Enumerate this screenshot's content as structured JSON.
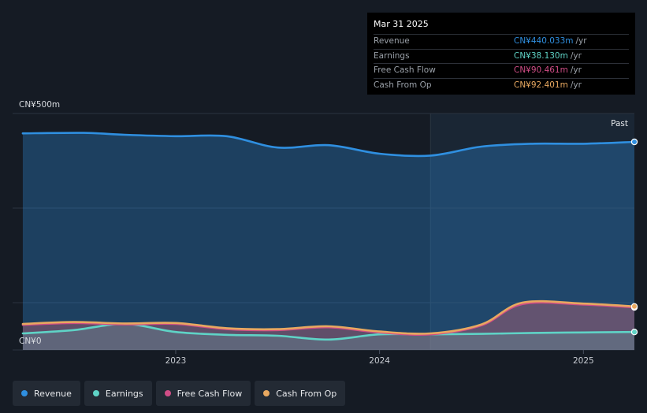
{
  "chart_data": {
    "type": "area",
    "y_top_label": "CN¥500m",
    "y_zero_label": "CN¥0",
    "past_label": "Past",
    "ylim": [
      0,
      500
    ],
    "xlim": [
      2022.2,
      2025.25
    ],
    "x_ticks": [
      {
        "value": 2023,
        "label": "2023"
      },
      {
        "value": 2024,
        "label": "2024"
      },
      {
        "value": 2025,
        "label": "2025"
      }
    ],
    "past_start": 2024.25,
    "series": [
      {
        "name": "Revenue",
        "color": "#2f8fe0",
        "points": [
          [
            2022.25,
            458
          ],
          [
            2022.55,
            459
          ],
          [
            2022.75,
            455
          ],
          [
            2023.0,
            452
          ],
          [
            2023.25,
            452
          ],
          [
            2023.5,
            428
          ],
          [
            2023.75,
            433
          ],
          [
            2024.0,
            415
          ],
          [
            2024.25,
            411
          ],
          [
            2024.5,
            430
          ],
          [
            2024.75,
            436
          ],
          [
            2025.0,
            436
          ],
          [
            2025.25,
            440
          ]
        ]
      },
      {
        "name": "Earnings",
        "color": "#5fd3c6",
        "points": [
          [
            2022.25,
            35
          ],
          [
            2022.5,
            42
          ],
          [
            2022.75,
            55
          ],
          [
            2023.0,
            38
          ],
          [
            2023.25,
            32
          ],
          [
            2023.5,
            30
          ],
          [
            2023.75,
            22
          ],
          [
            2024.0,
            33
          ],
          [
            2024.25,
            33
          ],
          [
            2024.5,
            34
          ],
          [
            2024.75,
            36
          ],
          [
            2025.0,
            37
          ],
          [
            2025.25,
            38
          ]
        ]
      },
      {
        "name": "Free Cash Flow",
        "color": "#d04d86",
        "points": [
          [
            2022.25,
            53
          ],
          [
            2022.5,
            57
          ],
          [
            2022.75,
            54
          ],
          [
            2023.0,
            55
          ],
          [
            2023.25,
            44
          ],
          [
            2023.5,
            42
          ],
          [
            2023.75,
            48
          ],
          [
            2024.0,
            37
          ],
          [
            2024.25,
            33
          ],
          [
            2024.5,
            52
          ],
          [
            2024.7,
            97
          ],
          [
            2025.0,
            96
          ],
          [
            2025.25,
            90
          ]
        ]
      },
      {
        "name": "Cash From Op",
        "color": "#e8a860",
        "points": [
          [
            2022.25,
            55
          ],
          [
            2022.5,
            59
          ],
          [
            2022.75,
            56
          ],
          [
            2023.0,
            57
          ],
          [
            2023.25,
            46
          ],
          [
            2023.5,
            44
          ],
          [
            2023.75,
            50
          ],
          [
            2024.0,
            39
          ],
          [
            2024.25,
            35
          ],
          [
            2024.5,
            54
          ],
          [
            2024.7,
            100
          ],
          [
            2025.0,
            98
          ],
          [
            2025.25,
            92
          ]
        ]
      }
    ]
  },
  "tooltip": {
    "date": "Mar 31 2025",
    "rows": [
      {
        "label": "Revenue",
        "value": "CN¥440.033m",
        "unit": "/yr",
        "color": "#2f8fe0"
      },
      {
        "label": "Earnings",
        "value": "CN¥38.130m",
        "unit": "/yr",
        "color": "#5fd3c6"
      },
      {
        "label": "Free Cash Flow",
        "value": "CN¥90.461m",
        "unit": "/yr",
        "color": "#d04d86"
      },
      {
        "label": "Cash From Op",
        "value": "CN¥92.401m",
        "unit": "/yr",
        "color": "#e8a860"
      }
    ]
  },
  "legend": [
    {
      "label": "Revenue",
      "color": "#2f8fe0"
    },
    {
      "label": "Earnings",
      "color": "#5fd3c6"
    },
    {
      "label": "Free Cash Flow",
      "color": "#d04d86"
    },
    {
      "label": "Cash From Op",
      "color": "#e8a860"
    }
  ]
}
